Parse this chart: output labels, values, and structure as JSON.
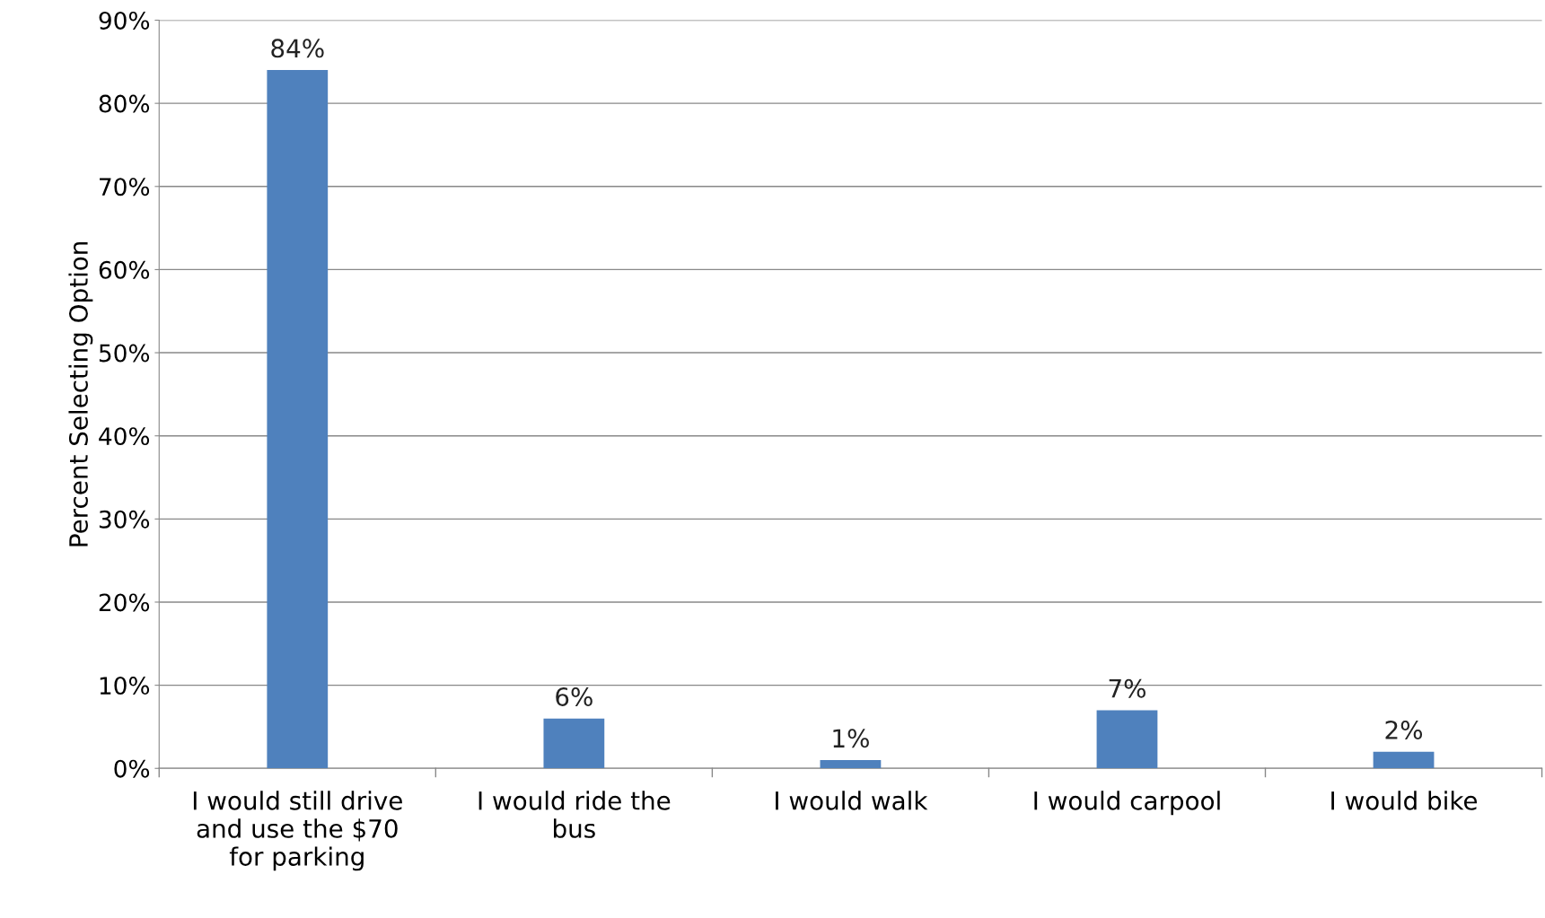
{
  "chart_data": {
    "type": "bar",
    "ylabel": "Percent Selecting Option",
    "categories": [
      "I would still drive\nand use the $70\nfor parking",
      "I would ride the\nbus",
      "I would walk",
      "I would carpool",
      "I would bike"
    ],
    "values": [
      84,
      6,
      1,
      7,
      2
    ],
    "value_labels": [
      "84%",
      "6%",
      "1%",
      "7%",
      "2%"
    ],
    "color": "#4f81bd",
    "ylim": [
      0,
      90
    ],
    "yticks": [
      {
        "value": 0,
        "label": "0%"
      },
      {
        "value": 10,
        "label": "10%"
      },
      {
        "value": 20,
        "label": "20%"
      },
      {
        "value": 30,
        "label": "30%"
      },
      {
        "value": 40,
        "label": "40%"
      },
      {
        "value": 50,
        "label": "50%"
      },
      {
        "value": 60,
        "label": "60%"
      },
      {
        "value": 70,
        "label": "70%"
      },
      {
        "value": 80,
        "label": "80%"
      },
      {
        "value": 90,
        "label": "90%"
      }
    ],
    "grid": "y",
    "legend": false
  }
}
